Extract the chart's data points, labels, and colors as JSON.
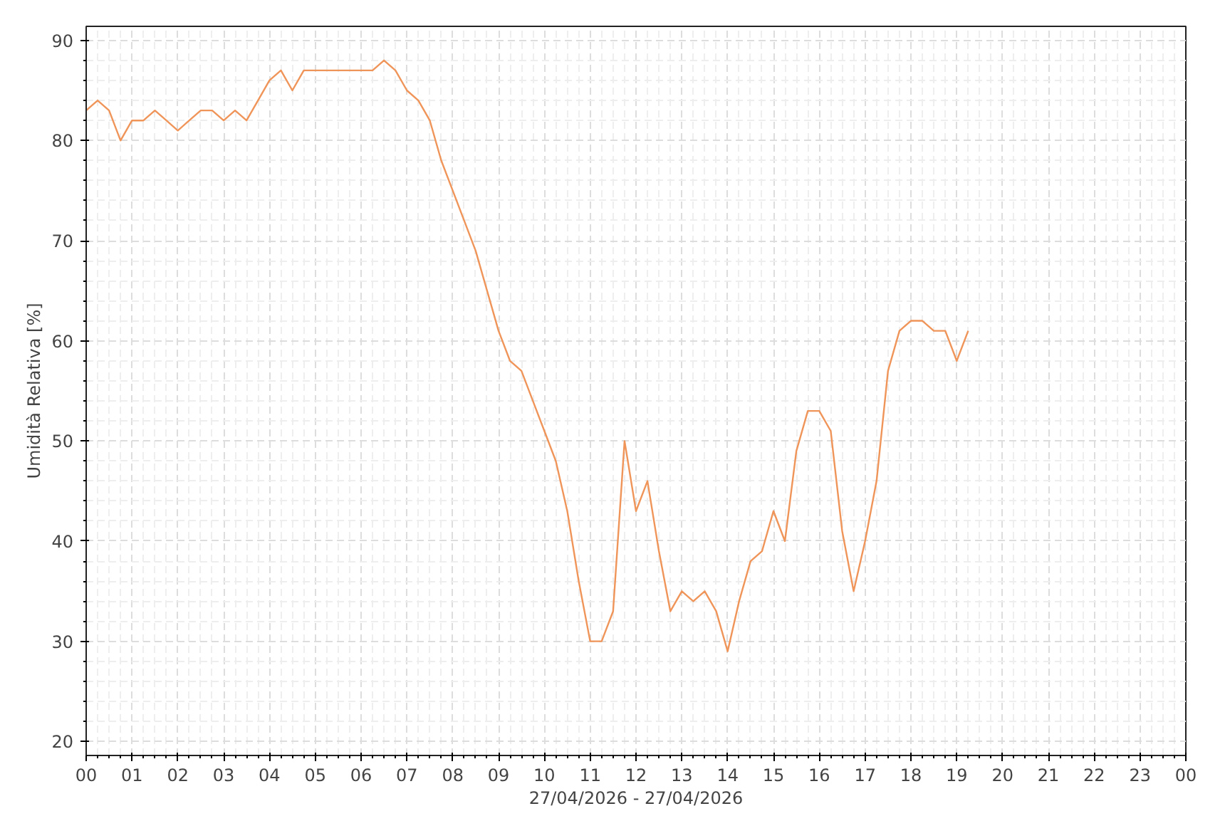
{
  "chart_data": {
    "type": "line",
    "xlabel": "27/04/2026 - 27/04/2026",
    "ylabel": "Umidità Relativa [%]",
    "x": [
      0,
      0.25,
      0.5,
      0.75,
      1,
      1.25,
      1.5,
      1.75,
      2,
      2.25,
      2.5,
      2.75,
      3,
      3.25,
      3.5,
      3.75,
      4,
      4.25,
      4.5,
      4.75,
      5,
      5.25,
      5.5,
      5.75,
      6,
      6.25,
      6.5,
      6.75,
      7,
      7.25,
      7.5,
      7.75,
      8,
      8.25,
      8.5,
      8.75,
      9,
      9.25,
      9.5,
      9.75,
      10,
      10.25,
      10.5,
      10.75,
      11,
      11.25,
      11.5,
      11.75,
      12,
      12.25,
      12.5,
      12.75,
      13,
      13.25,
      13.5,
      13.75,
      14,
      14.25,
      14.5,
      14.75,
      15,
      15.25,
      15.5,
      15.75,
      16,
      16.25,
      16.5,
      16.75,
      17,
      17.25,
      17.5,
      17.75,
      18,
      18.25,
      18.5,
      18.75,
      19,
      19.25
    ],
    "series": [
      {
        "color": "#f0955a",
        "values": [
          83,
          84,
          83,
          80,
          82,
          82,
          83,
          82,
          81,
          82,
          83,
          83,
          82,
          83,
          82,
          84,
          86,
          87,
          85,
          87,
          87,
          87,
          87,
          87,
          87,
          87,
          88,
          87,
          85,
          84,
          82,
          78,
          75,
          72,
          69,
          65,
          61,
          58,
          57,
          54,
          51,
          48,
          43,
          36,
          30,
          30,
          33,
          50,
          43,
          46,
          39,
          33,
          35,
          34,
          35,
          33,
          29,
          34,
          38,
          39,
          43,
          40,
          49,
          53,
          53,
          51,
          41,
          35,
          40,
          46,
          57,
          61,
          62,
          62,
          61,
          61,
          58,
          61
        ]
      }
    ],
    "xlim": [
      0,
      24
    ],
    "ylim": [
      18.6,
      91.4
    ],
    "xticks": [
      {
        "value": 0,
        "label": "00"
      },
      {
        "value": 1,
        "label": "01"
      },
      {
        "value": 2,
        "label": "02"
      },
      {
        "value": 3,
        "label": "03"
      },
      {
        "value": 4,
        "label": "04"
      },
      {
        "value": 5,
        "label": "05"
      },
      {
        "value": 6,
        "label": "06"
      },
      {
        "value": 7,
        "label": "07"
      },
      {
        "value": 8,
        "label": "08"
      },
      {
        "value": 9,
        "label": "09"
      },
      {
        "value": 10,
        "label": "10"
      },
      {
        "value": 11,
        "label": "11"
      },
      {
        "value": 12,
        "label": "12"
      },
      {
        "value": 13,
        "label": "13"
      },
      {
        "value": 14,
        "label": "14"
      },
      {
        "value": 15,
        "label": "15"
      },
      {
        "value": 16,
        "label": "16"
      },
      {
        "value": 17,
        "label": "17"
      },
      {
        "value": 18,
        "label": "18"
      },
      {
        "value": 19,
        "label": "19"
      },
      {
        "value": 20,
        "label": "20"
      },
      {
        "value": 21,
        "label": "21"
      },
      {
        "value": 22,
        "label": "22"
      },
      {
        "value": 23,
        "label": "23"
      },
      {
        "value": 24,
        "label": "00"
      }
    ],
    "yticks": [
      20,
      30,
      40,
      50,
      60,
      70,
      80,
      90
    ],
    "grid": true,
    "line_style": "solid",
    "marker": "none"
  }
}
